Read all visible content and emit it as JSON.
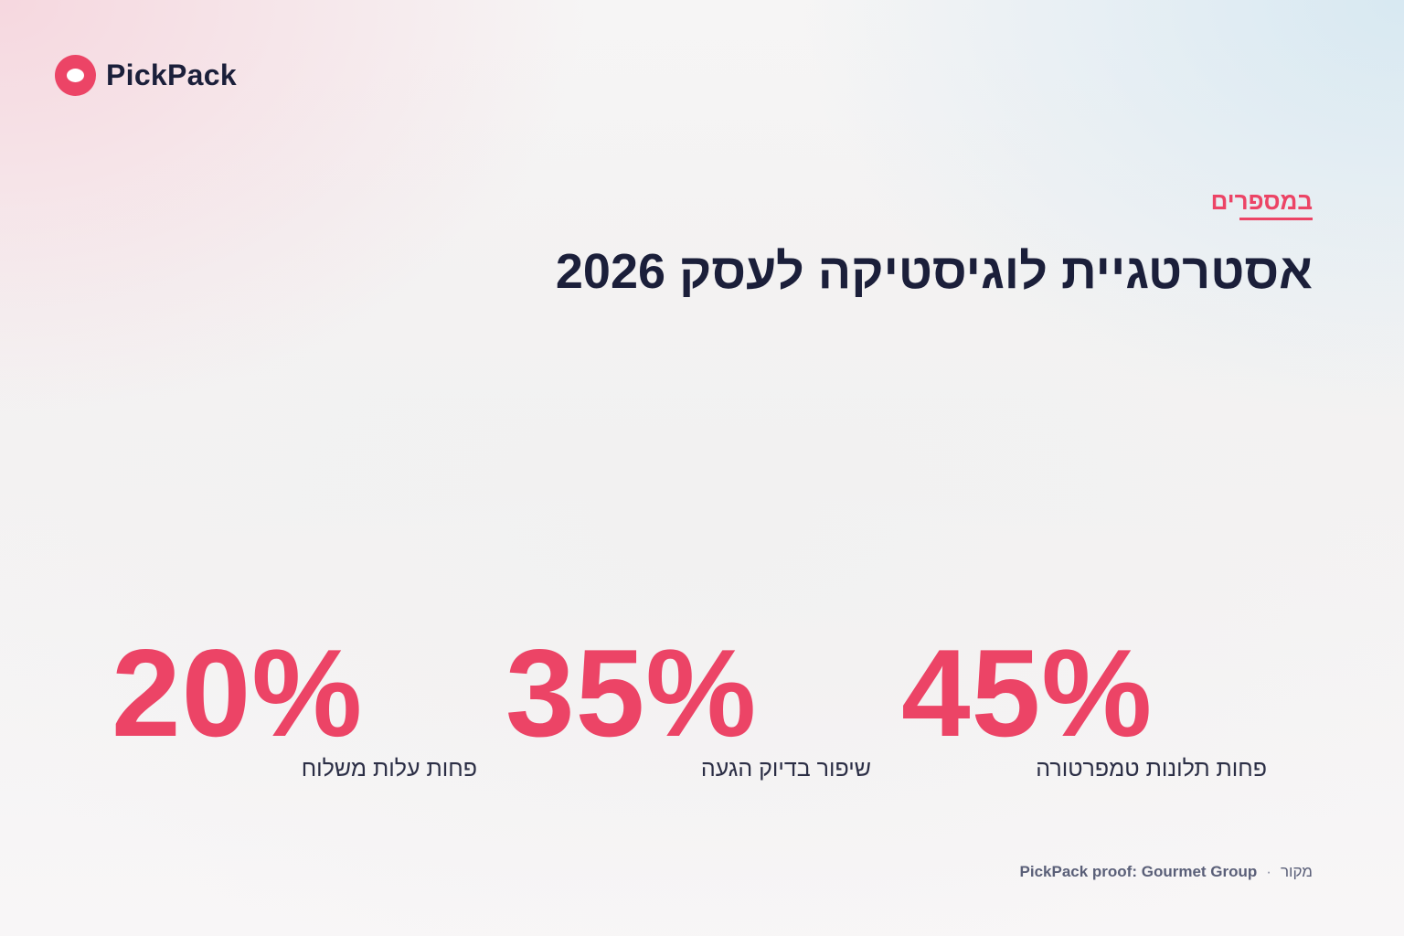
{
  "brand": {
    "name": "PickPack",
    "accent_color": "#ec4466",
    "text_color": "#1b1f3a",
    "logo_icon": "pickpack-logo-icon"
  },
  "header": {
    "eyebrow": "במספרים",
    "title": "אסטרטגיית לוגיסטיקה לעסק 2026"
  },
  "stats": [
    {
      "value": "20%",
      "label": "פחות עלות משלוח"
    },
    {
      "value": "35%",
      "label": "שיפור בדיוק הגעה"
    },
    {
      "value": "45%",
      "label": "פחות תלונות טמפרטורה"
    }
  ],
  "footer": {
    "source_label": "מקור",
    "separator": "·",
    "source_value": "PickPack proof: Gourmet Group"
  }
}
